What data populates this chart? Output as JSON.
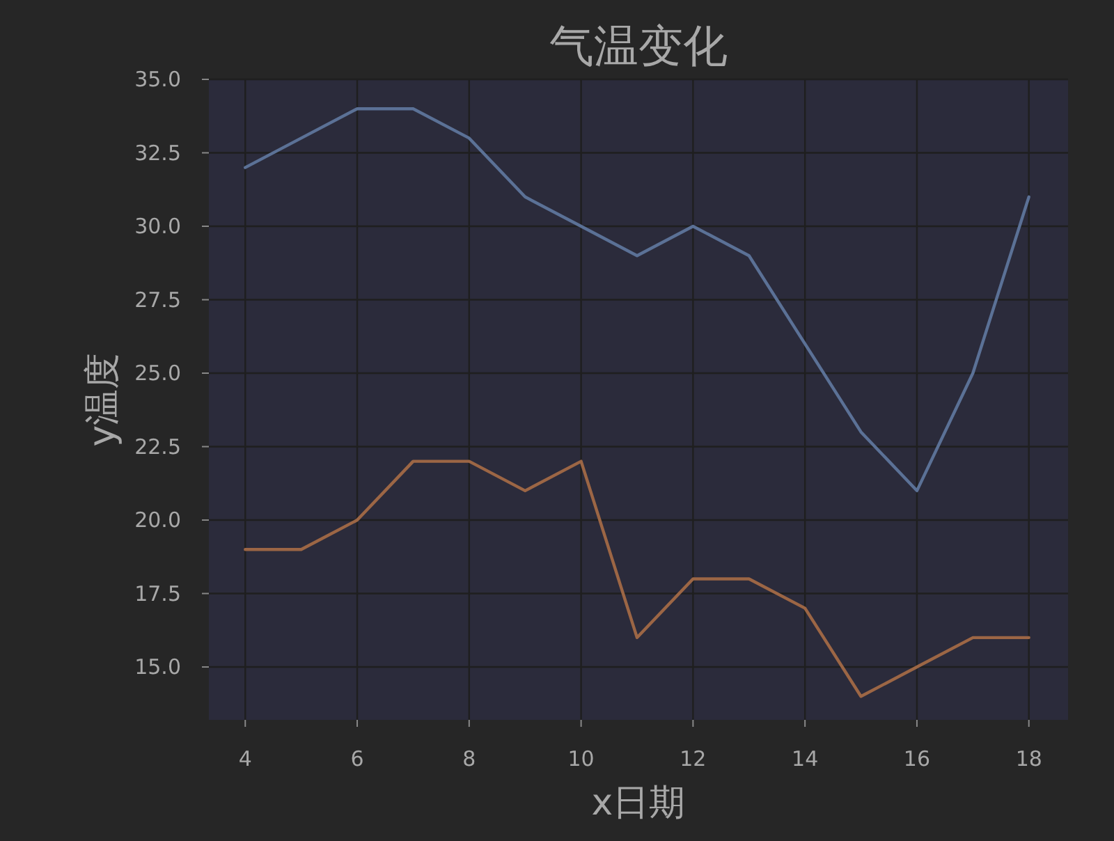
{
  "chart_data": {
    "type": "line",
    "title": "气温变化",
    "xlabel": "x日期",
    "ylabel": "y温度",
    "x": [
      4,
      5,
      6,
      7,
      8,
      9,
      10,
      11,
      12,
      13,
      14,
      15,
      16,
      17,
      18
    ],
    "series": [
      {
        "color": "#5b7196",
        "values": [
          32,
          33,
          34,
          34,
          33,
          31,
          30,
          29,
          30,
          29,
          26,
          23,
          21,
          25,
          31
        ]
      },
      {
        "color": "#9c6645",
        "values": [
          19,
          19,
          20,
          22,
          22,
          21,
          22,
          16,
          18,
          18,
          17,
          14,
          15,
          16,
          16
        ]
      }
    ],
    "xlim": [
      3.35,
      18.7
    ],
    "ylim": [
      13.2,
      35
    ],
    "xticks": [
      4,
      6,
      8,
      10,
      12,
      14,
      16,
      18
    ],
    "yticks": [
      {
        "value": 15,
        "label": "15.0"
      },
      {
        "value": 17.5,
        "label": "17.5"
      },
      {
        "value": 20,
        "label": "20.0"
      },
      {
        "value": 22.5,
        "label": "22.5"
      },
      {
        "value": 25,
        "label": "25.0"
      },
      {
        "value": 27.5,
        "label": "27.5"
      },
      {
        "value": 30,
        "label": "30.0"
      },
      {
        "value": 32.5,
        "label": "32.5"
      },
      {
        "value": 35,
        "label": "35.0"
      }
    ],
    "grid": true
  }
}
